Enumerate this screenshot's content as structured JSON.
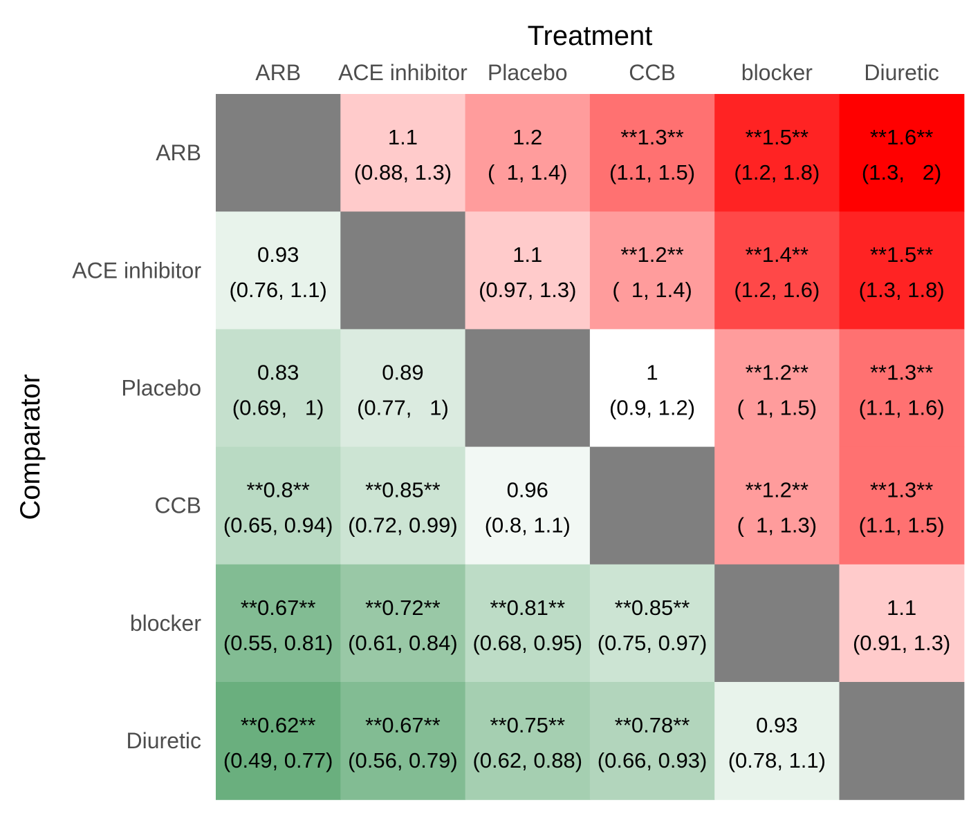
{
  "chart_data": {
    "type": "heatmap",
    "xlabel": "Treatment",
    "ylabel": "Comparator",
    "columns": [
      "ARB",
      "ACE inhibitor",
      "Placebo",
      "CCB",
      "blocker",
      "Diuretic"
    ],
    "rows": [
      "ARB",
      "ACE inhibitor",
      "Placebo",
      "CCB",
      "blocker",
      "Diuretic"
    ],
    "values": [
      [
        null,
        1.1,
        1.2,
        1.3,
        1.5,
        1.6
      ],
      [
        0.93,
        null,
        1.1,
        1.2,
        1.4,
        1.5
      ],
      [
        0.83,
        0.89,
        null,
        1,
        1.2,
        1.3
      ],
      [
        0.8,
        0.85,
        0.96,
        null,
        1.2,
        1.3
      ],
      [
        0.67,
        0.72,
        0.81,
        0.85,
        null,
        1.1
      ],
      [
        0.62,
        0.67,
        0.75,
        0.78,
        0.93,
        null
      ]
    ],
    "cells": [
      [
        null,
        {
          "estimate": "1.1",
          "ci": "(0.88, 1.3)"
        },
        {
          "estimate": "1.2",
          "ci": "(  1, 1.4)"
        },
        {
          "estimate": "**1.3**",
          "ci": "(1.1, 1.5)"
        },
        {
          "estimate": "**1.5**",
          "ci": "(1.2, 1.8)"
        },
        {
          "estimate": "**1.6**",
          "ci": "(1.3,   2)"
        }
      ],
      [
        {
          "estimate": "0.93",
          "ci": "(0.76, 1.1)"
        },
        null,
        {
          "estimate": "1.1",
          "ci": "(0.97, 1.3)"
        },
        {
          "estimate": "**1.2**",
          "ci": "(  1, 1.4)"
        },
        {
          "estimate": "**1.4**",
          "ci": "(1.2, 1.6)"
        },
        {
          "estimate": "**1.5**",
          "ci": "(1.3, 1.8)"
        }
      ],
      [
        {
          "estimate": "0.83",
          "ci": "(0.69,   1)"
        },
        {
          "estimate": "0.89",
          "ci": "(0.77,   1)"
        },
        null,
        {
          "estimate": "1",
          "ci": "(0.9, 1.2)"
        },
        {
          "estimate": "**1.2**",
          "ci": "(  1, 1.5)"
        },
        {
          "estimate": "**1.3**",
          "ci": "(1.1, 1.6)"
        }
      ],
      [
        {
          "estimate": "**0.8**",
          "ci": "(0.65, 0.94)"
        },
        {
          "estimate": "**0.85**",
          "ci": "(0.72, 0.99)"
        },
        {
          "estimate": "0.96",
          "ci": "(0.8, 1.1)"
        },
        null,
        {
          "estimate": "**1.2**",
          "ci": "(  1, 1.3)"
        },
        {
          "estimate": "**1.3**",
          "ci": "(1.1, 1.5)"
        }
      ],
      [
        {
          "estimate": "**0.67**",
          "ci": "(0.55, 0.81)"
        },
        {
          "estimate": "**0.72**",
          "ci": "(0.61, 0.84)"
        },
        {
          "estimate": "**0.81**",
          "ci": "(0.68, 0.95)"
        },
        {
          "estimate": "**0.85**",
          "ci": "(0.75, 0.97)"
        },
        null,
        {
          "estimate": "1.1",
          "ci": "(0.91, 1.3)"
        }
      ],
      [
        {
          "estimate": "**0.62**",
          "ci": "(0.49, 0.77)"
        },
        {
          "estimate": "**0.67**",
          "ci": "(0.56, 0.79)"
        },
        {
          "estimate": "**0.75**",
          "ci": "(0.62, 0.88)"
        },
        {
          "estimate": "**0.78**",
          "ci": "(0.66, 0.93)"
        },
        {
          "estimate": "0.93",
          "ci": "(0.78, 1.1)"
        },
        null
      ]
    ],
    "colors": {
      "high": "#ff0000",
      "mid": "#ffffff",
      "low": "#6aaf7e",
      "diagonal": "#7f7f7f"
    },
    "color_scale": {
      "log_min": -0.478,
      "log_max": 0.47
    },
    "x_axis_position": "top",
    "grid": false,
    "legend": "none"
  }
}
